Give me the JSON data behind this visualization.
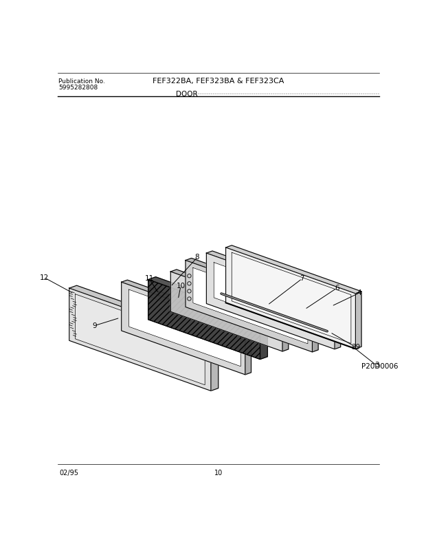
{
  "title_left_line1": "Publication No.",
  "title_left_line2": "5995282808",
  "title_center": "FEF322BA, FEF323BA & FEF323CA",
  "section": "DOOR",
  "footer_left": "02/95",
  "footer_center": "10",
  "diagram_code": "P20D0006",
  "background": "#ffffff",
  "ox": 310,
  "oy": 430,
  "sx": 28,
  "sy": 10,
  "sz": 18
}
